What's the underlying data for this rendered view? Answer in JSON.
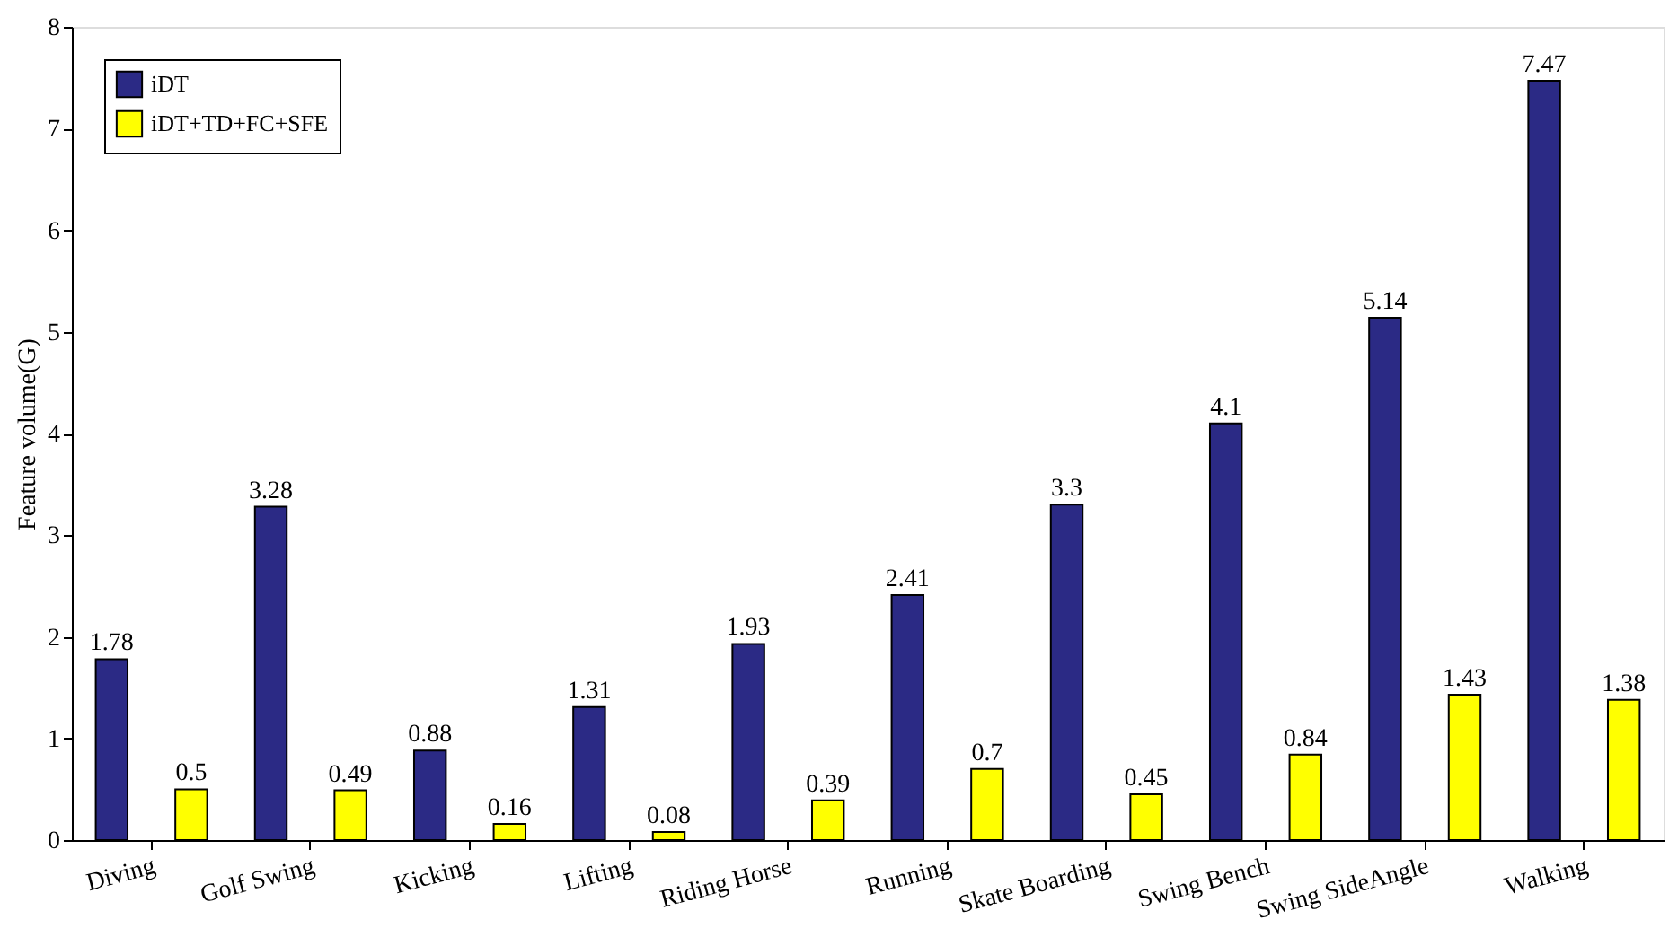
{
  "chart_data": {
    "type": "bar",
    "ylabel": "Feature volume(G)",
    "categories": [
      "Diving",
      "Golf Swing",
      "Kicking",
      "Lifting",
      "Riding Horse",
      "Running",
      "Skate Boarding",
      "Swing Bench",
      "Swing SideAngle",
      "Walking"
    ],
    "series": [
      {
        "name": "iDT",
        "color": "#2b2a85",
        "values": [
          1.78,
          3.28,
          0.88,
          1.31,
          1.93,
          2.41,
          3.3,
          4.1,
          5.14,
          7.47
        ]
      },
      {
        "name": "iDT+TD+FC+SFE",
        "color": "#ffff00",
        "values": [
          0.5,
          0.49,
          0.16,
          0.08,
          0.39,
          0.7,
          0.45,
          0.84,
          1.43,
          1.38
        ]
      }
    ],
    "ylim": [
      0,
      8
    ],
    "yticks": [
      0,
      1,
      2,
      3,
      4,
      5,
      6,
      7,
      8
    ],
    "data_labels": true,
    "legend": "top left"
  }
}
